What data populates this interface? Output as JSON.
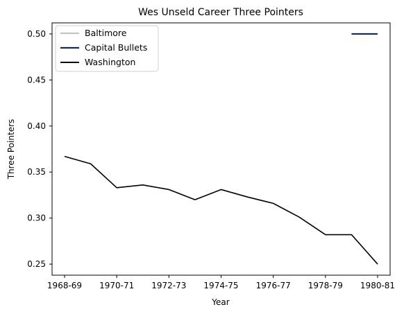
{
  "chart_data": {
    "type": "line",
    "title": "Wes Unseld Career Three Pointers",
    "xlabel": "Year",
    "ylabel": "Three Pointers",
    "x_ticks": [
      "1968-69",
      "1970-71",
      "1972-73",
      "1974-75",
      "1976-77",
      "1978-79",
      "1980-81"
    ],
    "ylim": [
      0.238,
      0.512
    ],
    "y_ticks": [
      0.25,
      0.3,
      0.35,
      0.4,
      0.45,
      0.5
    ],
    "y_tick_labels": [
      "0.25",
      "0.30",
      "0.35",
      "0.40",
      "0.45",
      "0.50"
    ],
    "grid": false,
    "legend": "upper-left",
    "series": [
      {
        "name": "Baltimore",
        "color": "#c0c0c0",
        "x": [],
        "values": []
      },
      {
        "name": "Capital Bullets",
        "color": "#0c2d5a",
        "x": [
          "1979-80",
          "1980-81"
        ],
        "values": [
          0.5,
          0.5
        ]
      },
      {
        "name": "Washington",
        "color": "#000000",
        "x": [
          "1968-69",
          "1969-70",
          "1970-71",
          "1971-72",
          "1972-73",
          "1973-74",
          "1974-75",
          "1975-76",
          "1976-77",
          "1977-78",
          "1978-79",
          "1979-80",
          "1980-81"
        ],
        "values": [
          0.367,
          0.359,
          0.333,
          0.336,
          0.331,
          0.32,
          0.331,
          0.323,
          0.316,
          0.301,
          0.282,
          0.282,
          0.25
        ]
      }
    ]
  }
}
